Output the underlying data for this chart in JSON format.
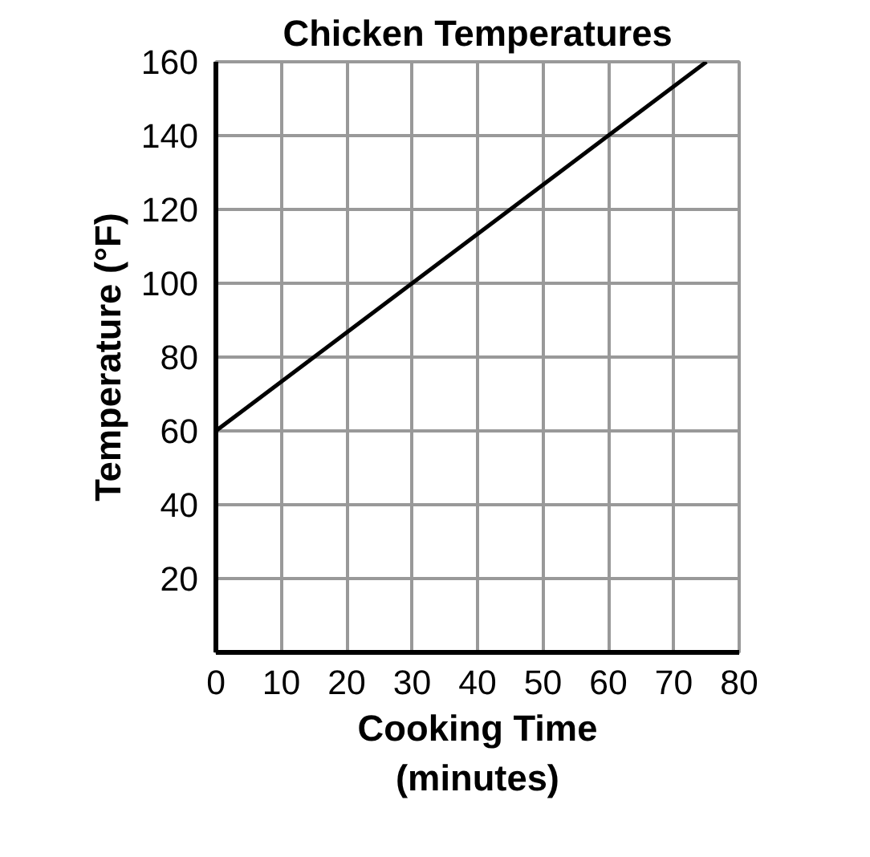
{
  "chart_data": {
    "type": "line",
    "title": "Chicken Temperatures",
    "xlabel": "Cooking Time\n(minutes)",
    "ylabel": "Temperature (°F)",
    "x": [
      0,
      75
    ],
    "series": [
      {
        "color": "#000000",
        "values": [
          60,
          160
        ]
      }
    ],
    "xlim": [
      0,
      80
    ],
    "ylim": [
      0,
      160
    ],
    "xticks": [
      0,
      10,
      20,
      30,
      40,
      50,
      60,
      70,
      80
    ],
    "yticks": [
      {
        "value": 0,
        "label": null
      },
      20,
      40,
      60,
      80,
      100,
      120,
      140,
      160
    ],
    "grid": true,
    "marker": "none",
    "line_style": "solid"
  }
}
